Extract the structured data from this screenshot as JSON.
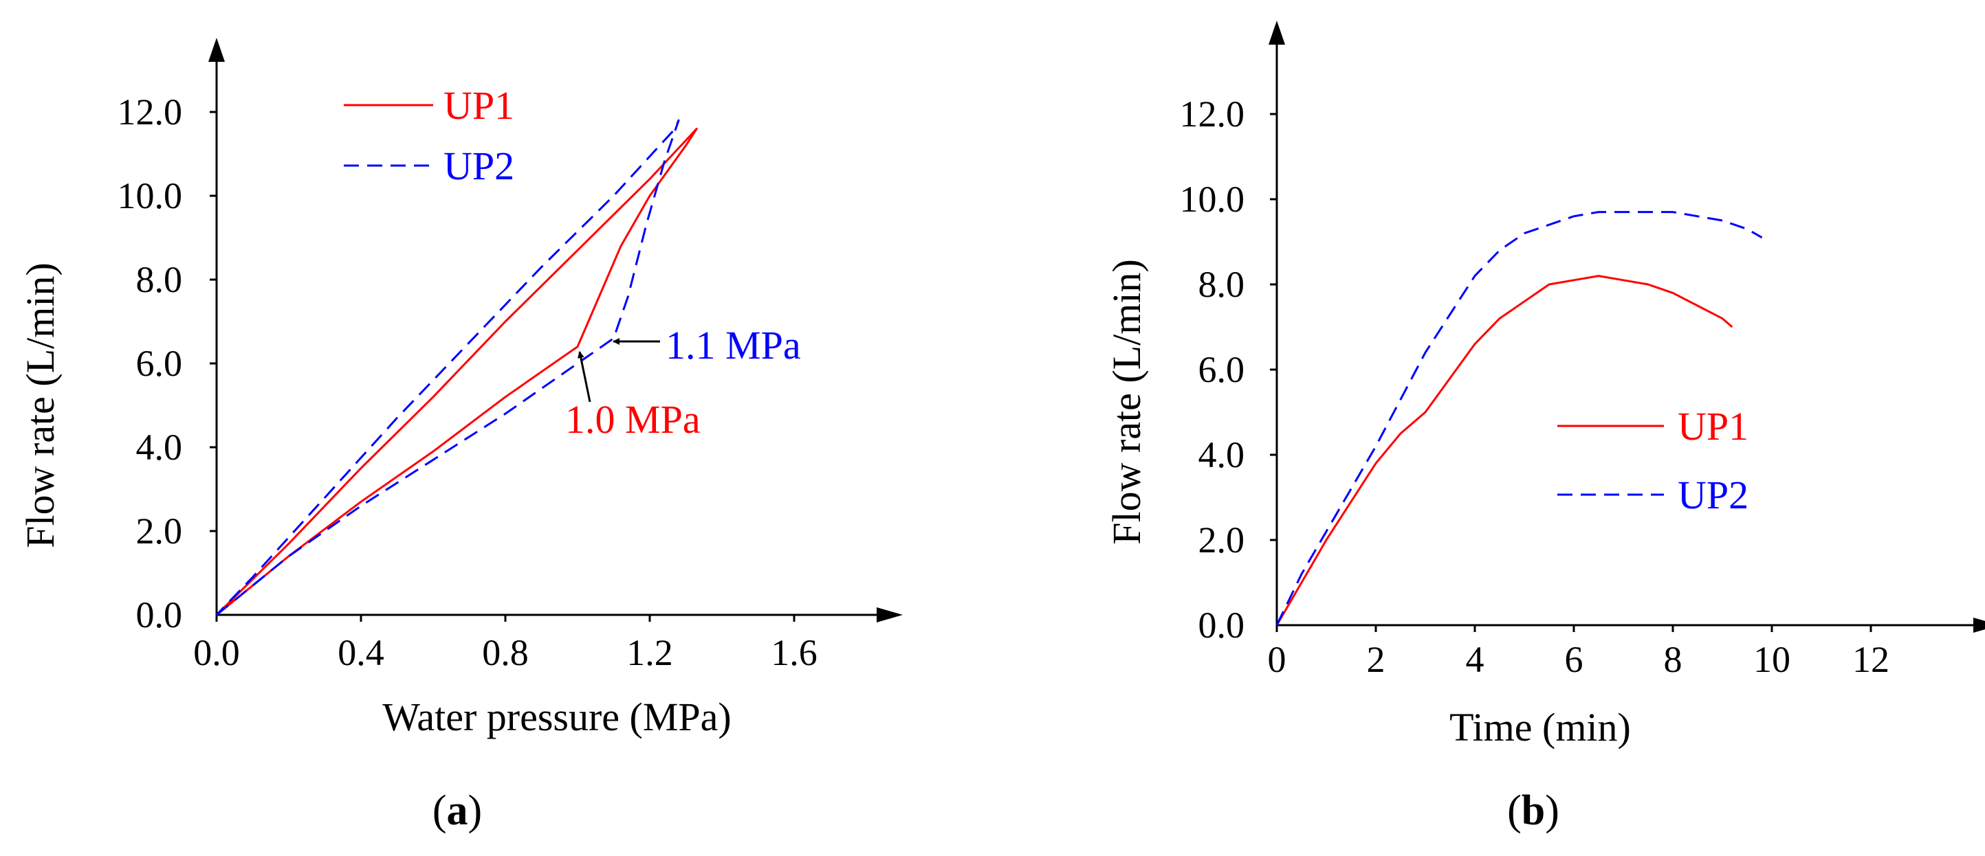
{
  "chart_data": [
    {
      "type": "line",
      "panel": "a",
      "caption_open": "(",
      "caption_letter": "a",
      "caption_close": ")",
      "xlabel": "Water pressure (MPa)",
      "ylabel": "Flow rate (L/min)",
      "xlim": [
        0,
        1.8
      ],
      "ylim": [
        0,
        13.5
      ],
      "xticks": [
        0.0,
        0.4,
        0.8,
        1.2,
        1.6
      ],
      "xtick_labels": [
        "0.0",
        "0.4",
        "0.8",
        "1.2",
        "1.6"
      ],
      "yticks": [
        0,
        2,
        4,
        6,
        8,
        10,
        12
      ],
      "ytick_labels": [
        "0.0",
        "2.0",
        "4.0",
        "6.0",
        "8.0",
        "10.0",
        "12.0"
      ],
      "legend_position": "top-left",
      "series": [
        {
          "name": "UP1",
          "color": "#ff0000",
          "dash": "solid",
          "x": [
            0.0,
            0.2,
            0.4,
            0.6,
            0.8,
            1.0,
            1.06,
            1.12,
            1.2,
            1.3,
            1.33,
            1.2,
            1.0,
            0.8,
            0.6,
            0.4,
            0.2,
            0.0
          ],
          "y": [
            0.0,
            1.4,
            2.7,
            3.9,
            5.2,
            6.4,
            7.6,
            8.8,
            10.0,
            11.2,
            11.6,
            10.4,
            8.7,
            7.0,
            5.2,
            3.5,
            1.7,
            0.0
          ]
        },
        {
          "name": "UP2",
          "color": "#0000ff",
          "dash": "dashed",
          "x": [
            0.0,
            0.2,
            0.3,
            0.4,
            0.6,
            0.8,
            1.0,
            1.1,
            1.14,
            1.19,
            1.24,
            1.28,
            1.27,
            1.1,
            0.9,
            0.7,
            0.5,
            0.3,
            0.1,
            0.0
          ],
          "y": [
            0.0,
            1.4,
            2.0,
            2.6,
            3.7,
            4.8,
            6.0,
            6.6,
            7.6,
            9.3,
            10.8,
            11.8,
            11.6,
            10.0,
            8.3,
            6.5,
            4.7,
            2.8,
            0.9,
            0.0
          ]
        }
      ],
      "annotations": [
        {
          "text": "1.0 MPa",
          "color": "#ff0000",
          "x": 1.0,
          "y": 6.4
        },
        {
          "text": "1.1 MPa",
          "color": "#0000ff",
          "x": 1.1,
          "y": 6.6
        }
      ]
    },
    {
      "type": "line",
      "panel": "b",
      "caption_open": "(",
      "caption_letter": "b",
      "caption_close": ")",
      "xlabel": "Time (min)",
      "ylabel": "Flow rate (L/min)",
      "xlim": [
        0,
        13.5
      ],
      "ylim": [
        0,
        14.5
      ],
      "xticks": [
        0,
        2,
        4,
        6,
        8,
        10,
        12
      ],
      "xtick_labels": [
        "0",
        "2",
        "4",
        "6",
        "8",
        "10",
        "12"
      ],
      "yticks": [
        0,
        2,
        4,
        6,
        8,
        10,
        12
      ],
      "ytick_labels": [
        "0.0",
        "2.0",
        "4.0",
        "6.0",
        "8.0",
        "10.0",
        "12.0"
      ],
      "legend_position": "center-right",
      "series": [
        {
          "name": "UP1",
          "color": "#ff0000",
          "dash": "solid",
          "x": [
            0.0,
            0.5,
            1.0,
            1.5,
            2.0,
            2.5,
            3.0,
            3.5,
            4.0,
            4.5,
            5.0,
            5.5,
            6.0,
            6.5,
            7.0,
            7.5,
            8.0,
            8.5,
            9.0,
            9.2
          ],
          "y": [
            0.0,
            1.0,
            2.0,
            2.9,
            3.8,
            4.5,
            5.0,
            5.8,
            6.6,
            7.2,
            7.6,
            8.0,
            8.1,
            8.2,
            8.1,
            8.0,
            7.8,
            7.5,
            7.2,
            7.0
          ]
        },
        {
          "name": "UP2",
          "color": "#0000ff",
          "dash": "dashed",
          "x": [
            0.0,
            0.5,
            1.0,
            1.5,
            2.0,
            2.5,
            3.0,
            3.5,
            4.0,
            4.5,
            5.0,
            5.5,
            6.0,
            6.5,
            7.0,
            7.5,
            8.0,
            8.5,
            9.0,
            9.5,
            9.8
          ],
          "y": [
            0.0,
            1.2,
            2.2,
            3.2,
            4.2,
            5.3,
            6.4,
            7.3,
            8.2,
            8.8,
            9.2,
            9.4,
            9.6,
            9.7,
            9.7,
            9.7,
            9.7,
            9.6,
            9.5,
            9.3,
            9.1
          ]
        }
      ]
    }
  ]
}
